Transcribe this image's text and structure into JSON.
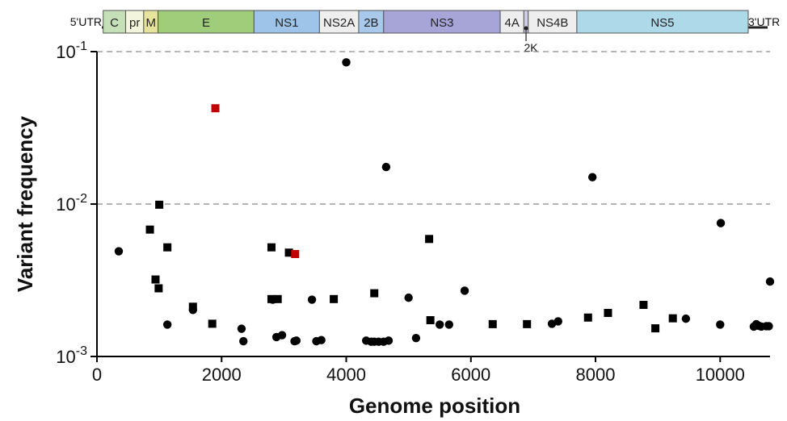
{
  "chart_data": {
    "type": "scatter",
    "xlabel": "Genome position",
    "ylabel": "Variant frequency",
    "xlim": [
      0,
      10800
    ],
    "ylim": [
      0.001,
      0.1
    ],
    "yscale": "log",
    "x_ticks": [
      "0",
      "2000",
      "4000",
      "6000",
      "8000",
      "10000"
    ],
    "y_ticks": [
      {
        "value": 0.001,
        "base": "10",
        "exp": "-3"
      },
      {
        "value": 0.01,
        "base": "10",
        "exp": "-2"
      },
      {
        "value": 0.1,
        "base": "10",
        "exp": "-1"
      }
    ],
    "reference_lines": [
      0.01,
      0.1
    ],
    "genome_map": {
      "utr5": "5'UTR",
      "utr3": "3'UTR",
      "segments": [
        {
          "label": "C",
          "start": 100,
          "end": 460,
          "color": "#c5dfb8"
        },
        {
          "label": "pr",
          "start": 460,
          "end": 750,
          "color": "#f3f5dc"
        },
        {
          "label": "M",
          "start": 750,
          "end": 980,
          "color": "#e6e49b"
        },
        {
          "label": "E",
          "start": 980,
          "end": 2520,
          "color": "#9fcd7a"
        },
        {
          "label": "NS1",
          "start": 2520,
          "end": 3570,
          "color": "#9ec4ea"
        },
        {
          "label": "NS2A",
          "start": 3570,
          "end": 4200,
          "color": "#eeeeee"
        },
        {
          "label": "2B",
          "start": 4200,
          "end": 4600,
          "color": "#a8c9ec"
        },
        {
          "label": "NS3",
          "start": 4600,
          "end": 6470,
          "color": "#a7a4d8"
        },
        {
          "label": "4A",
          "start": 6470,
          "end": 6850,
          "color": "#eeeeee"
        },
        {
          "label": "",
          "start": 6850,
          "end": 6920,
          "color": "#cfcfe8"
        },
        {
          "label": "NS4B",
          "start": 6920,
          "end": 7700,
          "color": "#eeeeee"
        },
        {
          "label": "NS5",
          "start": 7700,
          "end": 10450,
          "color": "#add9e8"
        }
      ],
      "marker": {
        "label": "2K",
        "position": 6885
      }
    },
    "series": [
      {
        "marker": "circle",
        "color": "#000000",
        "points": [
          [
            350,
            0.0049
          ],
          [
            1130,
            0.00162
          ],
          [
            1540,
            0.00202
          ],
          [
            2320,
            0.00152
          ],
          [
            2350,
            0.00126
          ],
          [
            2820,
            0.00236
          ],
          [
            2880,
            0.00134
          ],
          [
            2970,
            0.00138
          ],
          [
            3170,
            0.00126
          ],
          [
            3200,
            0.00127
          ],
          [
            3450,
            0.00236
          ],
          [
            3520,
            0.00126
          ],
          [
            3600,
            0.00128
          ],
          [
            4000,
            0.085
          ],
          [
            4320,
            0.00127
          ],
          [
            4400,
            0.00125
          ],
          [
            4450,
            0.00125
          ],
          [
            4520,
            0.00125
          ],
          [
            4600,
            0.00125
          ],
          [
            4640,
            0.0175
          ],
          [
            4680,
            0.00127
          ],
          [
            5000,
            0.00243
          ],
          [
            5120,
            0.00132
          ],
          [
            5500,
            0.00162
          ],
          [
            5650,
            0.00162
          ],
          [
            5900,
            0.0027
          ],
          [
            7300,
            0.00164
          ],
          [
            7400,
            0.0017
          ],
          [
            7950,
            0.015
          ],
          [
            9450,
            0.00177
          ],
          [
            10000,
            0.00162
          ],
          [
            10010,
            0.0075
          ],
          [
            10540,
            0.00157
          ],
          [
            10580,
            0.00163
          ],
          [
            10620,
            0.00159
          ],
          [
            10660,
            0.00157
          ],
          [
            10740,
            0.00158
          ],
          [
            10780,
            0.00158
          ],
          [
            10800,
            0.0031
          ]
        ]
      },
      {
        "marker": "square",
        "color": "#000000",
        "points": [
          [
            850,
            0.0068
          ],
          [
            940,
            0.0032
          ],
          [
            990,
            0.0028
          ],
          [
            1000,
            0.0099
          ],
          [
            1130,
            0.0052
          ],
          [
            1540,
            0.00212
          ],
          [
            1850,
            0.00164
          ],
          [
            2800,
            0.0052
          ],
          [
            2800,
            0.00238
          ],
          [
            2900,
            0.00238
          ],
          [
            3080,
            0.0048
          ],
          [
            3800,
            0.00238
          ],
          [
            4450,
            0.0026
          ],
          [
            5330,
            0.0059
          ],
          [
            5350,
            0.00173
          ],
          [
            6350,
            0.00163
          ],
          [
            6900,
            0.00163
          ],
          [
            7880,
            0.0018
          ],
          [
            8200,
            0.00193
          ],
          [
            8770,
            0.00218
          ],
          [
            8960,
            0.00153
          ],
          [
            9240,
            0.00178
          ]
        ]
      },
      {
        "marker": "square",
        "color": "#c00000",
        "points": [
          [
            1900,
            0.0425
          ],
          [
            3180,
            0.0047
          ]
        ]
      }
    ]
  }
}
